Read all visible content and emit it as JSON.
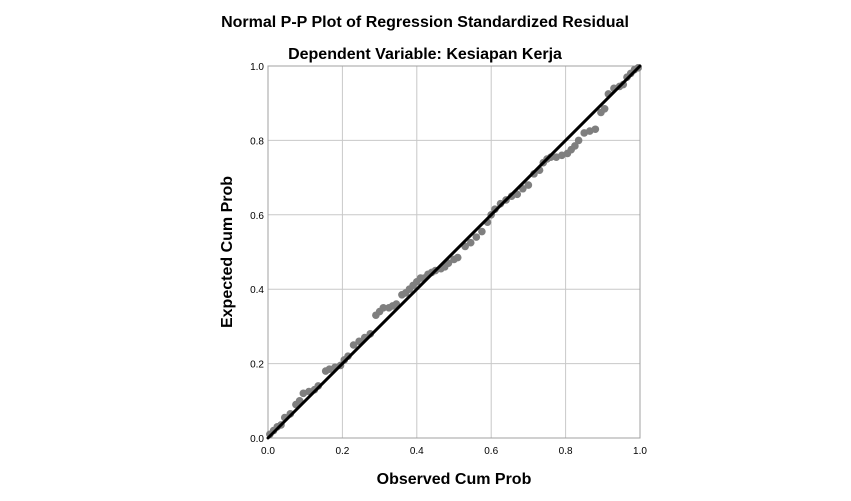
{
  "chart_data": {
    "type": "scatter",
    "title": "Normal P-P Plot of Regression Standardized Residual",
    "subtitle": "Dependent Variable: Kesiapan Kerja",
    "xlabel": "Observed Cum Prob",
    "ylabel": "Expected Cum Prob",
    "xlim": [
      0,
      1
    ],
    "ylim": [
      0,
      1
    ],
    "xticks": [
      "0.0",
      "0.2",
      "0.4",
      "0.6",
      "0.8",
      "1.0"
    ],
    "yticks": [
      "0.0",
      "0.2",
      "0.4",
      "0.6",
      "0.8",
      "1.0"
    ],
    "grid": true,
    "reference_line": [
      [
        0,
        0
      ],
      [
        1,
        1
      ]
    ],
    "colors": {
      "points": "#7f7f7f",
      "line": "#000000",
      "grid": "#c8c8c8",
      "frame": "#a0a0a0"
    },
    "points": [
      [
        0.005,
        0.01
      ],
      [
        0.015,
        0.02
      ],
      [
        0.025,
        0.03
      ],
      [
        0.035,
        0.035
      ],
      [
        0.045,
        0.055
      ],
      [
        0.06,
        0.065
      ],
      [
        0.075,
        0.09
      ],
      [
        0.085,
        0.1
      ],
      [
        0.095,
        0.12
      ],
      [
        0.11,
        0.125
      ],
      [
        0.125,
        0.13
      ],
      [
        0.135,
        0.14
      ],
      [
        0.155,
        0.18
      ],
      [
        0.165,
        0.185
      ],
      [
        0.18,
        0.19
      ],
      [
        0.195,
        0.195
      ],
      [
        0.205,
        0.21
      ],
      [
        0.215,
        0.22
      ],
      [
        0.23,
        0.25
      ],
      [
        0.245,
        0.26
      ],
      [
        0.26,
        0.27
      ],
      [
        0.275,
        0.28
      ],
      [
        0.29,
        0.33
      ],
      [
        0.3,
        0.34
      ],
      [
        0.31,
        0.35
      ],
      [
        0.325,
        0.35
      ],
      [
        0.335,
        0.355
      ],
      [
        0.345,
        0.36
      ],
      [
        0.36,
        0.385
      ],
      [
        0.37,
        0.39
      ],
      [
        0.38,
        0.4
      ],
      [
        0.39,
        0.41
      ],
      [
        0.4,
        0.42
      ],
      [
        0.41,
        0.43
      ],
      [
        0.42,
        0.43
      ],
      [
        0.43,
        0.44
      ],
      [
        0.44,
        0.445
      ],
      [
        0.45,
        0.45
      ],
      [
        0.465,
        0.455
      ],
      [
        0.475,
        0.46
      ],
      [
        0.485,
        0.47
      ],
      [
        0.5,
        0.48
      ],
      [
        0.51,
        0.485
      ],
      [
        0.53,
        0.515
      ],
      [
        0.545,
        0.525
      ],
      [
        0.56,
        0.54
      ],
      [
        0.575,
        0.555
      ],
      [
        0.59,
        0.58
      ],
      [
        0.6,
        0.6
      ],
      [
        0.61,
        0.615
      ],
      [
        0.625,
        0.63
      ],
      [
        0.64,
        0.64
      ],
      [
        0.655,
        0.65
      ],
      [
        0.67,
        0.655
      ],
      [
        0.685,
        0.67
      ],
      [
        0.7,
        0.68
      ],
      [
        0.715,
        0.71
      ],
      [
        0.73,
        0.72
      ],
      [
        0.74,
        0.74
      ],
      [
        0.75,
        0.75
      ],
      [
        0.76,
        0.755
      ],
      [
        0.775,
        0.755
      ],
      [
        0.79,
        0.76
      ],
      [
        0.805,
        0.765
      ],
      [
        0.815,
        0.775
      ],
      [
        0.825,
        0.785
      ],
      [
        0.835,
        0.8
      ],
      [
        0.85,
        0.82
      ],
      [
        0.865,
        0.825
      ],
      [
        0.88,
        0.83
      ],
      [
        0.895,
        0.875
      ],
      [
        0.905,
        0.885
      ],
      [
        0.915,
        0.925
      ],
      [
        0.93,
        0.94
      ],
      [
        0.945,
        0.945
      ],
      [
        0.955,
        0.95
      ],
      [
        0.965,
        0.97
      ],
      [
        0.975,
        0.98
      ],
      [
        0.985,
        0.99
      ],
      [
        0.995,
        0.995
      ]
    ]
  }
}
